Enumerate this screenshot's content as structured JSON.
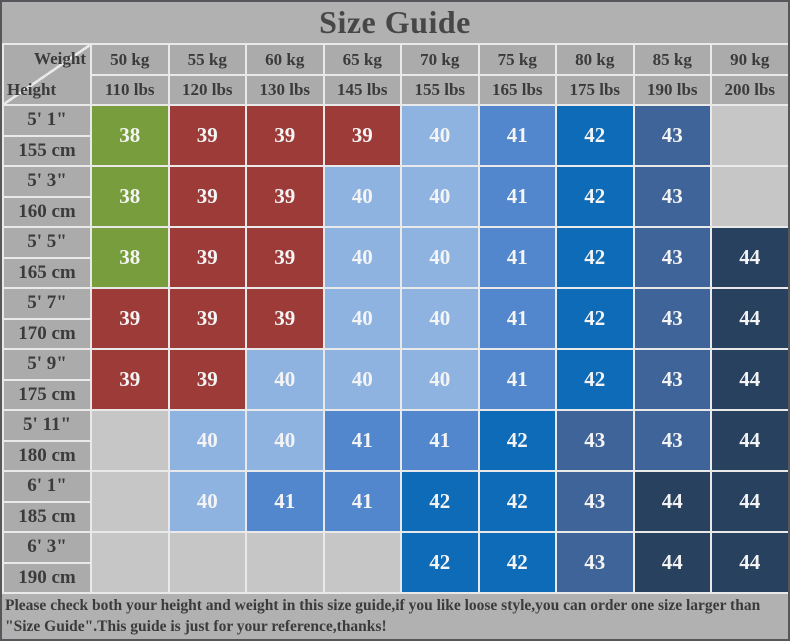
{
  "title": "Size Guide",
  "corner": {
    "top_label": "Weight",
    "bottom_label": "Height"
  },
  "footer": {
    "line1": "Please check both your height and weight in this size guide,if you like loose style,you can order one size larger than",
    "line2": "\"Size Guide\".This guide is just for your reference,thanks!"
  },
  "colors": {
    "background": "#b1b1b1",
    "outer_border": "#56575b",
    "border": "#e9e9e9",
    "header_cell": "#ababab",
    "empty_cell": "#c6c6c6",
    "title_text": "#474747",
    "text_dark": "#3b3b3b",
    "cell_text": "#f4f4f4"
  },
  "chart_data": {
    "type": "table",
    "title": "Size Guide",
    "weight_headers_kg": [
      "50 kg",
      "55 kg",
      "60 kg",
      "65 kg",
      "70 kg",
      "75 kg",
      "80 kg",
      "85 kg",
      "90 kg"
    ],
    "weight_headers_lbs": [
      "110 lbs",
      "120 lbs",
      "130 lbs",
      "145 lbs",
      "155 lbs",
      "165 lbs",
      "175 lbs",
      "190 lbs",
      "200 lbs"
    ],
    "rows": [
      {
        "height_ft": "5' 1\"",
        "height_cm": "155 cm",
        "sizes": [
          38,
          39,
          39,
          39,
          40,
          41,
          42,
          43,
          null
        ]
      },
      {
        "height_ft": "5' 3\"",
        "height_cm": "160 cm",
        "sizes": [
          38,
          39,
          39,
          40,
          40,
          41,
          42,
          43,
          null
        ]
      },
      {
        "height_ft": "5' 5\"",
        "height_cm": "165 cm",
        "sizes": [
          38,
          39,
          39,
          40,
          40,
          41,
          42,
          43,
          44
        ]
      },
      {
        "height_ft": "5' 7\"",
        "height_cm": "170 cm",
        "sizes": [
          39,
          39,
          39,
          40,
          40,
          41,
          42,
          43,
          44
        ]
      },
      {
        "height_ft": "5' 9\"",
        "height_cm": "175 cm",
        "sizes": [
          39,
          39,
          40,
          40,
          40,
          41,
          42,
          43,
          44
        ]
      },
      {
        "height_ft": "5' 11\"",
        "height_cm": "180 cm",
        "sizes": [
          null,
          40,
          40,
          41,
          41,
          42,
          43,
          43,
          44
        ]
      },
      {
        "height_ft": "6' 1\"",
        "height_cm": "185 cm",
        "sizes": [
          null,
          40,
          41,
          41,
          42,
          42,
          43,
          44,
          44
        ]
      },
      {
        "height_ft": "6' 3\"",
        "height_cm": "190 cm",
        "sizes": [
          null,
          null,
          null,
          null,
          42,
          42,
          43,
          44,
          44
        ]
      }
    ],
    "size_color_legend": {
      "38": "#789d3d",
      "39": "#9d3b39",
      "40": "#8fb3e0",
      "41": "#5287cd",
      "42": "#0e6bb8",
      "43": "#3f6499",
      "44": "#27415f"
    }
  }
}
